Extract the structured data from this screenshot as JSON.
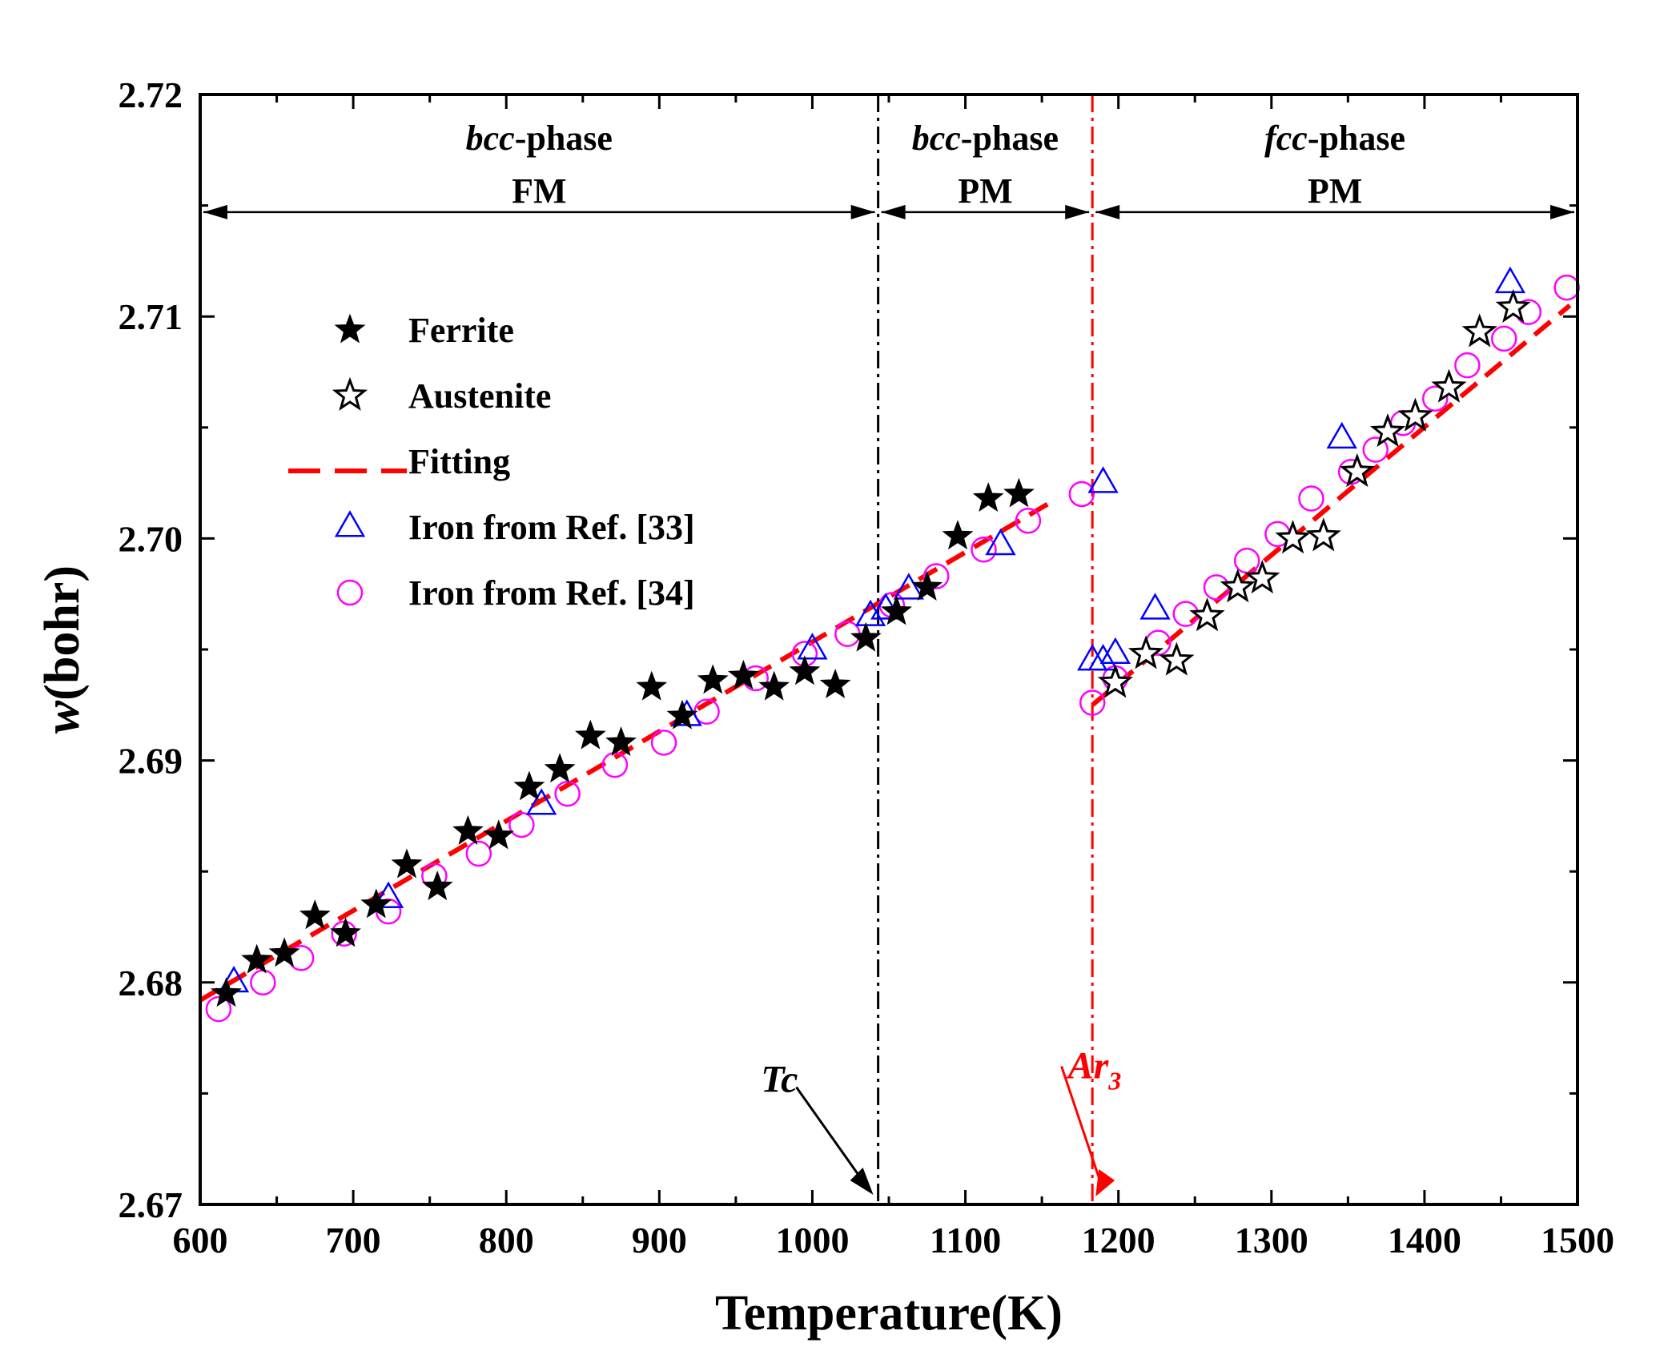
{
  "colors": {
    "ferrite": "#000000",
    "austenite": "#000000",
    "fitting": "#ff0000",
    "ref33": "#0000ff",
    "ref34": "#ff00ff",
    "tc_line": "#000000",
    "ar3_line": "#ff0000"
  },
  "chart_data": {
    "type": "scatter",
    "title": "",
    "xlabel": "Temperature(K)",
    "ylabel_italic": "w",
    "ylabel_rest": "(bohr)",
    "xlim": [
      600,
      1500
    ],
    "ylim": [
      2.67,
      2.72
    ],
    "xticks": [
      "600",
      "700",
      "800",
      "900",
      "1000",
      "1100",
      "1200",
      "1300",
      "1400",
      "1500"
    ],
    "yticks": [
      "2.67",
      "2.68",
      "2.69",
      "2.70",
      "2.71",
      "2.72"
    ],
    "regions": [
      {
        "phase_italic": "bcc",
        "phase_rest": "-phase",
        "magnetic": "FM",
        "x_from": 600,
        "x_to": 1043
      },
      {
        "phase_italic": "bcc",
        "phase_rest": "-phase",
        "magnetic": "PM",
        "x_from": 1043,
        "x_to": 1183
      },
      {
        "phase_italic": "fcc",
        "phase_rest": "-phase",
        "magnetic": "PM",
        "x_from": 1183,
        "x_to": 1500
      }
    ],
    "vertical_lines": {
      "Tc": 1043,
      "Ar3": 1183
    },
    "annotations": {
      "tc_label": "Tc",
      "ar3_label_main": "Ar",
      "ar3_label_sub": "3",
      "tc_label_at": [
        1000,
        2.6755
      ],
      "ar3_label_at": [
        1167,
        2.6755
      ]
    },
    "series": [
      {
        "name": "Ferrite",
        "marker": "filled-star",
        "x": [
          617,
          637,
          655,
          675,
          695,
          715,
          735,
          755,
          775,
          795,
          815,
          835,
          855,
          875,
          895,
          915,
          935,
          955,
          975,
          995,
          1015,
          1035,
          1055,
          1075,
          1095,
          1115,
          1135
        ],
        "y": [
          2.6795,
          2.681,
          2.6813,
          2.683,
          2.6822,
          2.6835,
          2.6853,
          2.6843,
          2.6868,
          2.6866,
          2.6888,
          2.6896,
          2.6911,
          2.6908,
          2.6933,
          2.692,
          2.6936,
          2.6938,
          2.6933,
          2.694,
          2.6934,
          2.6955,
          2.6967,
          2.6978,
          2.7001,
          2.7018,
          2.702
        ]
      },
      {
        "name": "Austenite",
        "marker": "open-star",
        "x": [
          1198,
          1218,
          1238,
          1258,
          1278,
          1294,
          1314,
          1334,
          1356,
          1376,
          1394,
          1416,
          1436,
          1458
        ],
        "y": [
          2.6935,
          2.6948,
          2.6945,
          2.6965,
          2.6978,
          2.6982,
          2.7,
          2.7001,
          2.703,
          2.7048,
          2.7055,
          2.7068,
          2.7093,
          2.7104
        ]
      },
      {
        "name": "Fitting",
        "marker": "dashed-line",
        "segments": [
          {
            "x": [
              600,
              1160
            ],
            "y": [
              2.6792,
              2.7018
            ]
          },
          {
            "x": [
              1183,
              1495
            ],
            "y": [
              2.6925,
              2.7105
            ]
          }
        ]
      },
      {
        "name": "Iron from Ref. [33]",
        "marker": "open-triangle",
        "x": [
          622,
          723,
          823,
          918,
          1000,
          1038,
          1048,
          1063,
          1123,
          1190,
          1183,
          1190,
          1198,
          1224,
          1346,
          1456
        ],
        "y": [
          2.68,
          2.6838,
          2.688,
          2.692,
          2.695,
          2.6965,
          2.6968,
          2.6977,
          2.6997,
          2.7025,
          2.6945,
          2.6945,
          2.6948,
          2.6968,
          2.7045,
          2.7115
        ]
      },
      {
        "name": "Iron from Ref. [34]",
        "marker": "open-circle",
        "x": [
          612,
          641,
          666,
          694,
          723,
          753,
          782,
          810,
          840,
          871,
          903,
          931,
          963,
          995,
          1023,
          1052,
          1081,
          1112,
          1141,
          1176,
          1183,
          1198,
          1226,
          1244,
          1264,
          1284,
          1304,
          1326,
          1352,
          1368,
          1386,
          1407,
          1428,
          1452,
          1468,
          1493
        ],
        "y": [
          2.6788,
          2.68,
          2.6811,
          2.6822,
          2.6832,
          2.6848,
          2.6858,
          2.6871,
          2.6885,
          2.6898,
          2.6908,
          2.6922,
          2.6937,
          2.6948,
          2.6957,
          2.697,
          2.6983,
          2.6995,
          2.7008,
          2.702,
          2.6926,
          2.6937,
          2.6953,
          2.6966,
          2.6978,
          2.699,
          2.7002,
          2.7018,
          2.703,
          2.704,
          2.7052,
          2.7063,
          2.7078,
          2.709,
          2.7102,
          2.7113
        ]
      }
    ]
  }
}
